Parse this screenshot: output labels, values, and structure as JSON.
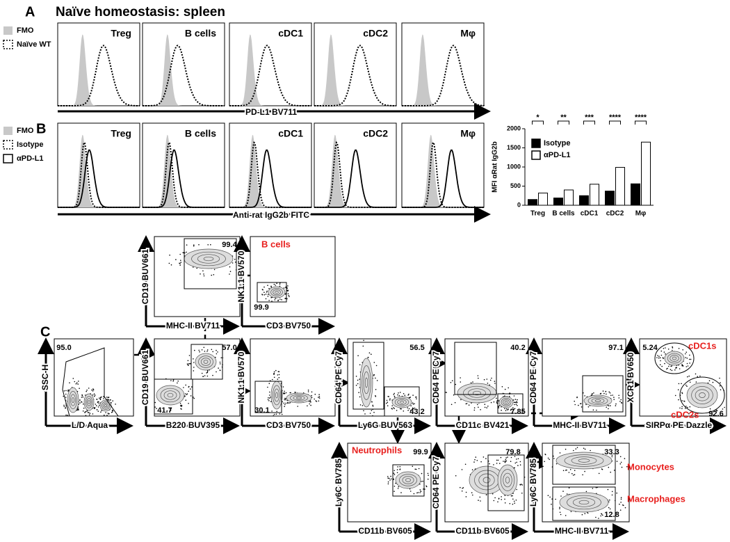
{
  "panel_a": {
    "label": "A",
    "title": "Naïve homeostasis: spleen",
    "legend": [
      "FMO",
      "Naïve WT"
    ],
    "populations": [
      "Treg",
      "B cells",
      "cDC1",
      "cDC2",
      "Mφ"
    ],
    "x_axis_label": "PD-L1 BV711"
  },
  "panel_b": {
    "label": "B",
    "legend": [
      "FMO",
      "Isotype",
      "αPD-L1"
    ],
    "populations": [
      "Treg",
      "B cells",
      "cDC1",
      "cDC2",
      "Mφ"
    ],
    "x_axis_label": "Anti-rat IgG2b FITC"
  },
  "bar_chart": {
    "type": "bar",
    "y_axis_label": "MFI αRat IgG2b",
    "categories": [
      "Treg",
      "B cells",
      "cDC1",
      "cDC2",
      "Mφ"
    ],
    "series": [
      {
        "name": "Isotype",
        "color": "#000000",
        "values": [
          150,
          190,
          250,
          370,
          560
        ]
      },
      {
        "name": "αPD-L1",
        "color": "#ffffff",
        "values": [
          320,
          400,
          550,
          990,
          1650
        ]
      }
    ],
    "ylim": [
      0,
      2000
    ],
    "yticks": [
      0,
      500,
      1000,
      1500,
      2000
    ],
    "significance": [
      "*",
      "**",
      "***",
      "****",
      "****"
    ]
  },
  "panel_c": {
    "label": "C",
    "plots": [
      {
        "y_label": "CD19 BUV661",
        "x_label": "MHC-II BV711",
        "gates": [
          "99.4"
        ],
        "populations": []
      },
      {
        "y_label": "NK1.1 BV570",
        "x_label": "CD3 BV750",
        "gates": [
          "99.9"
        ],
        "populations": [
          "B cells"
        ]
      },
      {
        "y_label": "SSC-H",
        "x_label": "L/D Aqua",
        "gates": [
          "95.0"
        ],
        "populations": []
      },
      {
        "y_label": "CD19 BUV661",
        "x_label": "B220 BUV395",
        "gates": [
          "57.0",
          "41.7"
        ],
        "populations": []
      },
      {
        "y_label": "NK1.1 BV570",
        "x_label": "CD3 BV750",
        "gates": [
          "30.1"
        ],
        "populations": []
      },
      {
        "y_label": "CD64 PE Cy7",
        "x_label": "Ly6G BUV563",
        "gates": [
          "56.5",
          "43.2"
        ],
        "populations": []
      },
      {
        "y_label": "CD64 PE Cy7",
        "x_label": "CD11c BV421",
        "gates": [
          "40.2",
          "7.85"
        ],
        "populations": []
      },
      {
        "y_label": "CD64 PE Cy7",
        "x_label": "MHC-II BV711",
        "gates": [
          "97.1"
        ],
        "populations": []
      },
      {
        "y_label": "XCR1 BV650",
        "x_label": "SIRPα PE Dazzle",
        "gates": [
          "5.24",
          "92.6"
        ],
        "populations": [
          "cDC1s",
          "cDC2s"
        ]
      },
      {
        "y_label": "Ly6C BV785",
        "x_label": "CD11b BV605",
        "gates": [
          "99.9"
        ],
        "populations": [
          "Neutrophils"
        ]
      },
      {
        "y_label": "CD64 PE Cy7",
        "x_label": "CD11b BV605",
        "gates": [
          "79.8"
        ],
        "populations": []
      },
      {
        "y_label": "Ly6C BV785",
        "x_label": "MHC-II BV711",
        "gates": [
          "33.3",
          "12.8"
        ],
        "populations": [
          "Monocytes",
          "Macrophages"
        ]
      }
    ]
  }
}
